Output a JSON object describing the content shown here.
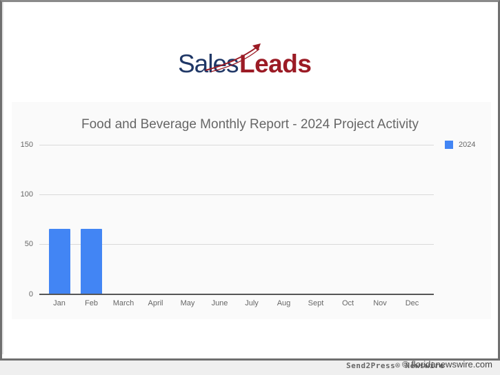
{
  "logo": {
    "part1": "Sales",
    "part2": "Leads",
    "colors": {
      "sales": "#1f3766",
      "leads": "#9b1b25"
    }
  },
  "chart_data": {
    "type": "bar",
    "title": "Food and Beverage Monthly Report - 2024 Project Activity",
    "categories": [
      "Jan",
      "Feb",
      "March",
      "April",
      "May",
      "June",
      "July",
      "Aug",
      "Sept",
      "Oct",
      "Nov",
      "Dec"
    ],
    "series": [
      {
        "name": "2024",
        "color": "#4285f4",
        "values": [
          66,
          66,
          0,
          0,
          0,
          0,
          0,
          0,
          0,
          0,
          0,
          0
        ]
      }
    ],
    "xlabel": "",
    "ylabel": "",
    "ylim": [
      0,
      150
    ],
    "yticks": [
      "0",
      "50",
      "100",
      "150"
    ],
    "grid": true,
    "legend_position": "right"
  },
  "watermarks": {
    "left": "Send2Press® Newswire",
    "right": "© floridanewswire.com"
  }
}
